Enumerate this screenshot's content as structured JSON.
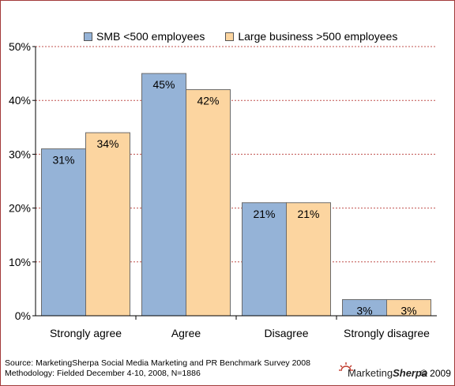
{
  "chart_data": {
    "type": "bar",
    "categories": [
      "Strongly agree",
      "Agree",
      "Disagree",
      "Strongly disagree"
    ],
    "series": [
      {
        "name": "SMB <500 employees",
        "values": [
          31,
          45,
          21,
          3
        ],
        "labels": [
          "31%",
          "45%",
          "21%",
          "3%"
        ],
        "color": "#95b3d7"
      },
      {
        "name": "Large business >500 employees",
        "values": [
          34,
          42,
          21,
          3
        ],
        "labels": [
          "34%",
          "42%",
          "21%",
          "3%"
        ],
        "color": "#fcd5a0"
      }
    ],
    "ylim": [
      0,
      50
    ],
    "yticks": [
      0,
      10,
      20,
      30,
      40,
      50
    ],
    "ytick_labels": [
      "0%",
      "10%",
      "20%",
      "30%",
      "40%",
      "50%"
    ],
    "grid": true,
    "grid_color": "#c0504d",
    "legend_placement": "top"
  },
  "footer": {
    "source": "Source: MarketingSherpa Social Media Marketing and PR Benchmark Survey 2008",
    "methodology": "Methodology: Fielded December 4-10, 2008, N=1886"
  },
  "logo": {
    "part1": "Marketing",
    "part2": "Sherpa",
    "copyright": "© 2009",
    "accent": "#c0392b"
  }
}
